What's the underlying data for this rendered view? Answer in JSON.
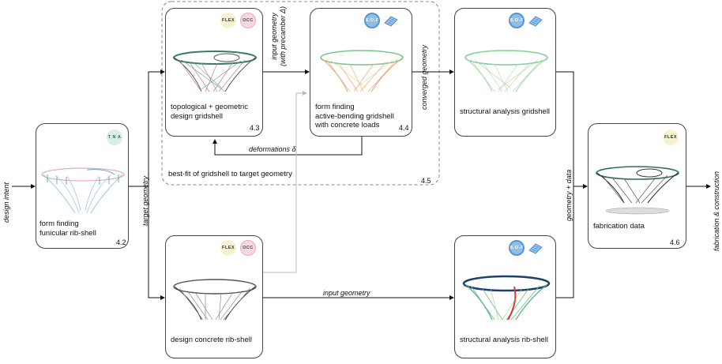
{
  "boxes": {
    "b42": {
      "label": "form finding\nfunicular rib-shell",
      "num": "4.2",
      "badges": [
        "T N A"
      ]
    },
    "b43": {
      "label": "topological + geometric\ndesign gridshell",
      "num": "4.3",
      "badges": [
        "FLEX",
        "OCC"
      ]
    },
    "b44": {
      "label": "form finding\nactive-bending gridshell\nwith concrete loads",
      "num": "4.4",
      "badges": [
        "S.O.F"
      ]
    },
    "bsa": {
      "label": "structural analysis gridshell",
      "badges": [
        "S.O.F"
      ]
    },
    "bdc": {
      "label": "design concrete rib-shell",
      "badges": [
        "FLEX",
        "OCC"
      ]
    },
    "bsr": {
      "label": "structural analysis rib-shell",
      "badges": [
        "S.O.F"
      ]
    },
    "b46": {
      "label": "fabrication data",
      "num": "4.6",
      "badges": [
        "FLEX"
      ]
    }
  },
  "group": {
    "label": "best-fit of gridshell to target geometry",
    "num": "4.5"
  },
  "arrows": {
    "design_intent": "design intent",
    "target_geometry": "target geometry",
    "input_geometry_precamber": "input geometry\n(with precamber Δ)",
    "converged_geometry": "converged geometry",
    "deformations": "deformations δ",
    "input_geometry": "input geometry",
    "geometry_data": "geometry + data",
    "fabrication_construction": "fabrication & construction"
  }
}
